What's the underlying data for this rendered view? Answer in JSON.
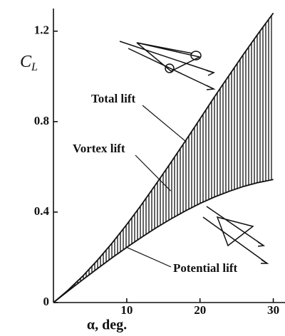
{
  "chart_data": {
    "type": "line",
    "xlabel": "α, deg.",
    "ylabel": "C",
    "ylabel_sub": "L",
    "x": [
      0,
      2,
      4,
      6,
      8,
      10,
      12,
      14,
      16,
      18,
      20,
      22,
      24,
      26,
      28,
      30
    ],
    "series": [
      {
        "name": "Total lift",
        "color": "#111111",
        "values": [
          0,
          0.055,
          0.117,
          0.187,
          0.263,
          0.345,
          0.432,
          0.524,
          0.618,
          0.714,
          0.812,
          0.911,
          1.006,
          1.101,
          1.192,
          1.28
        ]
      },
      {
        "name": "Potential lift",
        "color": "#111111",
        "values": [
          0,
          0.051,
          0.101,
          0.15,
          0.198,
          0.244,
          0.288,
          0.33,
          0.369,
          0.405,
          0.438,
          0.467,
          0.492,
          0.514,
          0.531,
          0.544
        ]
      }
    ],
    "region_label": "Vortex lift",
    "xlim": [
      0,
      31.5
    ],
    "ylim": [
      0,
      1.3
    ],
    "xticks": [
      10,
      20,
      30
    ],
    "yticks": [
      0,
      0.4,
      0.8,
      1.2
    ]
  }
}
